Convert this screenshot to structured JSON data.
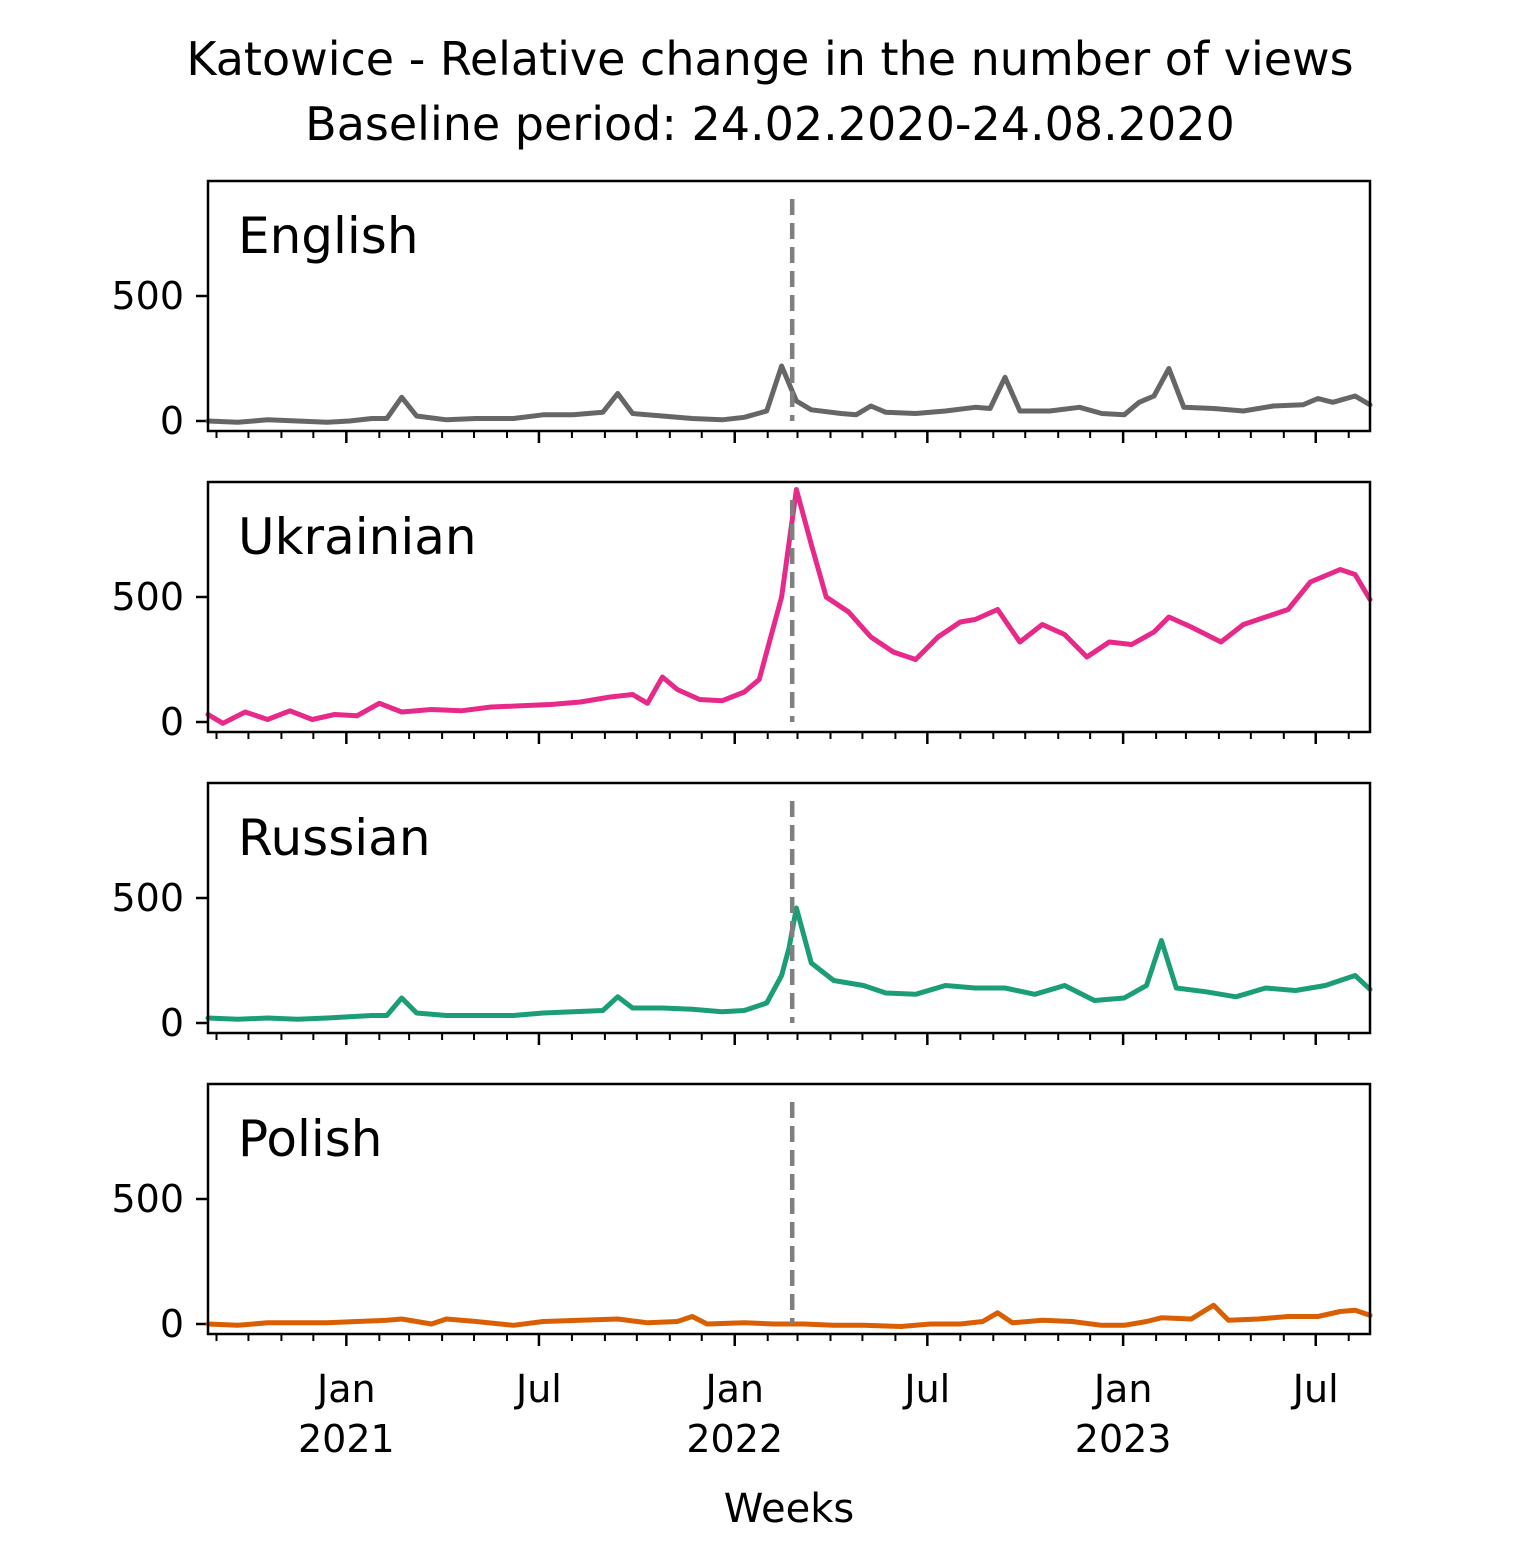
{
  "chart_data": {
    "type": "line",
    "title": "Katowice - Relative change in the number of views",
    "subtitle": "Baseline period: 24.02.2020-24.08.2020",
    "xlabel": "Weeks",
    "ylabel": "",
    "x_range": [
      "2020-08-24",
      "2023-08-21"
    ],
    "ylim": [
      -40,
      960
    ],
    "yticks": [
      0,
      500
    ],
    "xticks": [
      {
        "date": "2021-01-01",
        "label": "Jan",
        "year": "2021"
      },
      {
        "date": "2021-07-01",
        "label": "Jul",
        "year": ""
      },
      {
        "date": "2022-01-01",
        "label": "Jan",
        "year": "2022"
      },
      {
        "date": "2022-07-01",
        "label": "Jul",
        "year": ""
      },
      {
        "date": "2023-01-01",
        "label": "Jan",
        "year": "2023"
      },
      {
        "date": "2023-07-01",
        "label": "Jul",
        "year": ""
      }
    ],
    "event_line_date": "2022-02-24",
    "grid": false,
    "series": [
      {
        "name": "English",
        "color": "#666666",
        "points": [
          [
            "2020-08-24",
            0
          ],
          [
            "2020-09-21",
            -5
          ],
          [
            "2020-10-19",
            5
          ],
          [
            "2020-11-16",
            0
          ],
          [
            "2020-12-14",
            -5
          ],
          [
            "2021-01-04",
            0
          ],
          [
            "2021-01-25",
            10
          ],
          [
            "2021-02-08",
            10
          ],
          [
            "2021-02-22",
            95
          ],
          [
            "2021-03-08",
            20
          ],
          [
            "2021-04-05",
            5
          ],
          [
            "2021-05-03",
            10
          ],
          [
            "2021-06-07",
            10
          ],
          [
            "2021-07-05",
            25
          ],
          [
            "2021-08-02",
            25
          ],
          [
            "2021-08-30",
            35
          ],
          [
            "2021-09-13",
            110
          ],
          [
            "2021-09-27",
            30
          ],
          [
            "2021-10-25",
            20
          ],
          [
            "2021-11-22",
            10
          ],
          [
            "2021-12-20",
            5
          ],
          [
            "2022-01-10",
            15
          ],
          [
            "2022-01-31",
            40
          ],
          [
            "2022-02-14",
            220
          ],
          [
            "2022-02-28",
            80
          ],
          [
            "2022-03-14",
            45
          ],
          [
            "2022-04-11",
            30
          ],
          [
            "2022-04-25",
            25
          ],
          [
            "2022-05-09",
            60
          ],
          [
            "2022-05-23",
            35
          ],
          [
            "2022-06-20",
            30
          ],
          [
            "2022-07-18",
            40
          ],
          [
            "2022-08-15",
            55
          ],
          [
            "2022-08-29",
            50
          ],
          [
            "2022-09-12",
            175
          ],
          [
            "2022-09-26",
            40
          ],
          [
            "2022-10-24",
            40
          ],
          [
            "2022-11-21",
            55
          ],
          [
            "2022-12-12",
            30
          ],
          [
            "2023-01-02",
            25
          ],
          [
            "2023-01-16",
            75
          ],
          [
            "2023-01-30",
            100
          ],
          [
            "2023-02-13",
            210
          ],
          [
            "2023-02-27",
            55
          ],
          [
            "2023-03-27",
            50
          ],
          [
            "2023-04-24",
            40
          ],
          [
            "2023-05-22",
            60
          ],
          [
            "2023-06-19",
            65
          ],
          [
            "2023-07-03",
            90
          ],
          [
            "2023-07-17",
            75
          ],
          [
            "2023-08-07",
            100
          ],
          [
            "2023-08-21",
            65
          ]
        ]
      },
      {
        "name": "Ukrainian",
        "color": "#e7298a",
        "points": [
          [
            "2020-08-24",
            30
          ],
          [
            "2020-09-07",
            -5
          ],
          [
            "2020-09-28",
            40
          ],
          [
            "2020-10-19",
            10
          ],
          [
            "2020-11-09",
            45
          ],
          [
            "2020-11-30",
            10
          ],
          [
            "2020-12-21",
            30
          ],
          [
            "2021-01-11",
            25
          ],
          [
            "2021-02-01",
            75
          ],
          [
            "2021-02-22",
            40
          ],
          [
            "2021-03-22",
            50
          ],
          [
            "2021-04-19",
            45
          ],
          [
            "2021-05-17",
            60
          ],
          [
            "2021-06-14",
            65
          ],
          [
            "2021-07-12",
            70
          ],
          [
            "2021-08-09",
            80
          ],
          [
            "2021-09-06",
            100
          ],
          [
            "2021-09-27",
            110
          ],
          [
            "2021-10-11",
            75
          ],
          [
            "2021-10-25",
            180
          ],
          [
            "2021-11-08",
            130
          ],
          [
            "2021-11-29",
            90
          ],
          [
            "2021-12-20",
            85
          ],
          [
            "2022-01-10",
            120
          ],
          [
            "2022-01-24",
            170
          ],
          [
            "2022-02-14",
            500
          ],
          [
            "2022-02-28",
            930
          ],
          [
            "2022-03-14",
            710
          ],
          [
            "2022-03-28",
            500
          ],
          [
            "2022-04-18",
            440
          ],
          [
            "2022-05-09",
            340
          ],
          [
            "2022-05-30",
            280
          ],
          [
            "2022-06-20",
            250
          ],
          [
            "2022-07-11",
            340
          ],
          [
            "2022-08-01",
            400
          ],
          [
            "2022-08-15",
            410
          ],
          [
            "2022-09-05",
            450
          ],
          [
            "2022-09-26",
            320
          ],
          [
            "2022-10-17",
            390
          ],
          [
            "2022-11-07",
            350
          ],
          [
            "2022-11-28",
            260
          ],
          [
            "2022-12-19",
            320
          ],
          [
            "2023-01-09",
            310
          ],
          [
            "2023-01-30",
            360
          ],
          [
            "2023-02-13",
            420
          ],
          [
            "2023-03-06",
            380
          ],
          [
            "2023-04-03",
            320
          ],
          [
            "2023-04-24",
            390
          ],
          [
            "2023-05-15",
            420
          ],
          [
            "2023-06-05",
            450
          ],
          [
            "2023-06-26",
            560
          ],
          [
            "2023-07-24",
            610
          ],
          [
            "2023-08-07",
            590
          ],
          [
            "2023-08-21",
            490
          ]
        ]
      },
      {
        "name": "Russian",
        "color": "#1b9e77",
        "points": [
          [
            "2020-08-24",
            20
          ],
          [
            "2020-09-21",
            15
          ],
          [
            "2020-10-19",
            20
          ],
          [
            "2020-11-16",
            15
          ],
          [
            "2020-12-14",
            20
          ],
          [
            "2021-01-04",
            25
          ],
          [
            "2021-01-25",
            30
          ],
          [
            "2021-02-08",
            30
          ],
          [
            "2021-02-22",
            100
          ],
          [
            "2021-03-08",
            40
          ],
          [
            "2021-04-05",
            30
          ],
          [
            "2021-05-03",
            30
          ],
          [
            "2021-06-07",
            30
          ],
          [
            "2021-07-05",
            40
          ],
          [
            "2021-08-02",
            45
          ],
          [
            "2021-08-30",
            50
          ],
          [
            "2021-09-13",
            105
          ],
          [
            "2021-09-27",
            60
          ],
          [
            "2021-10-25",
            60
          ],
          [
            "2021-11-22",
            55
          ],
          [
            "2021-12-20",
            45
          ],
          [
            "2022-01-10",
            50
          ],
          [
            "2022-01-31",
            80
          ],
          [
            "2022-02-14",
            190
          ],
          [
            "2022-02-21",
            300
          ],
          [
            "2022-02-28",
            460
          ],
          [
            "2022-03-14",
            240
          ],
          [
            "2022-04-04",
            170
          ],
          [
            "2022-05-02",
            150
          ],
          [
            "2022-05-23",
            120
          ],
          [
            "2022-06-20",
            115
          ],
          [
            "2022-07-18",
            150
          ],
          [
            "2022-08-15",
            140
          ],
          [
            "2022-09-12",
            140
          ],
          [
            "2022-10-10",
            115
          ],
          [
            "2022-11-07",
            150
          ],
          [
            "2022-12-05",
            90
          ],
          [
            "2023-01-02",
            100
          ],
          [
            "2023-01-23",
            150
          ],
          [
            "2023-02-06",
            330
          ],
          [
            "2023-02-20",
            140
          ],
          [
            "2023-03-20",
            125
          ],
          [
            "2023-04-17",
            105
          ],
          [
            "2023-05-15",
            140
          ],
          [
            "2023-06-12",
            130
          ],
          [
            "2023-07-10",
            150
          ],
          [
            "2023-08-07",
            190
          ],
          [
            "2023-08-21",
            135
          ]
        ]
      },
      {
        "name": "Polish",
        "color": "#d95f02",
        "points": [
          [
            "2020-08-24",
            0
          ],
          [
            "2020-09-21",
            -5
          ],
          [
            "2020-10-19",
            5
          ],
          [
            "2020-11-16",
            5
          ],
          [
            "2020-12-14",
            5
          ],
          [
            "2021-01-11",
            10
          ],
          [
            "2021-02-08",
            15
          ],
          [
            "2021-02-22",
            20
          ],
          [
            "2021-03-22",
            0
          ],
          [
            "2021-04-05",
            20
          ],
          [
            "2021-05-03",
            10
          ],
          [
            "2021-06-07",
            -5
          ],
          [
            "2021-07-05",
            10
          ],
          [
            "2021-08-09",
            15
          ],
          [
            "2021-09-13",
            20
          ],
          [
            "2021-10-11",
            5
          ],
          [
            "2021-11-08",
            10
          ],
          [
            "2021-11-22",
            30
          ],
          [
            "2021-12-06",
            0
          ],
          [
            "2022-01-10",
            5
          ],
          [
            "2022-02-07",
            0
          ],
          [
            "2022-03-07",
            0
          ],
          [
            "2022-04-04",
            -5
          ],
          [
            "2022-05-02",
            -5
          ],
          [
            "2022-06-06",
            -10
          ],
          [
            "2022-07-04",
            0
          ],
          [
            "2022-08-01",
            0
          ],
          [
            "2022-08-22",
            10
          ],
          [
            "2022-09-05",
            45
          ],
          [
            "2022-09-19",
            5
          ],
          [
            "2022-10-17",
            15
          ],
          [
            "2022-11-14",
            10
          ],
          [
            "2022-12-12",
            -5
          ],
          [
            "2023-01-02",
            -5
          ],
          [
            "2023-01-23",
            10
          ],
          [
            "2023-02-06",
            25
          ],
          [
            "2023-03-06",
            20
          ],
          [
            "2023-03-27",
            75
          ],
          [
            "2023-04-10",
            15
          ],
          [
            "2023-05-08",
            20
          ],
          [
            "2023-06-05",
            30
          ],
          [
            "2023-07-03",
            30
          ],
          [
            "2023-07-24",
            50
          ],
          [
            "2023-08-07",
            55
          ],
          [
            "2023-08-21",
            35
          ]
        ]
      }
    ]
  }
}
